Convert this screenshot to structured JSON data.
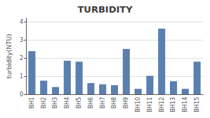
{
  "chart_data": {
    "type": "bar",
    "title": "TURBIDITY",
    "ylabel": "turbidity(NTU)",
    "categories": [
      "BH1",
      "BH2",
      "BH3",
      "BH4",
      "BH5",
      "BH6",
      "BH7",
      "BH8",
      "BH9",
      "BH10",
      "BH11",
      "BH12",
      "BH13",
      "BH14",
      "BH15"
    ],
    "values": [
      2.38,
      0.75,
      0.4,
      1.85,
      1.8,
      0.62,
      0.55,
      0.5,
      2.5,
      0.3,
      1.02,
      3.62,
      0.72,
      0.3,
      1.8
    ],
    "color": "#5b7fae",
    "ylim": [
      0,
      4.2
    ],
    "yticks": [
      0,
      1,
      2,
      3,
      4
    ],
    "grid": true
  }
}
